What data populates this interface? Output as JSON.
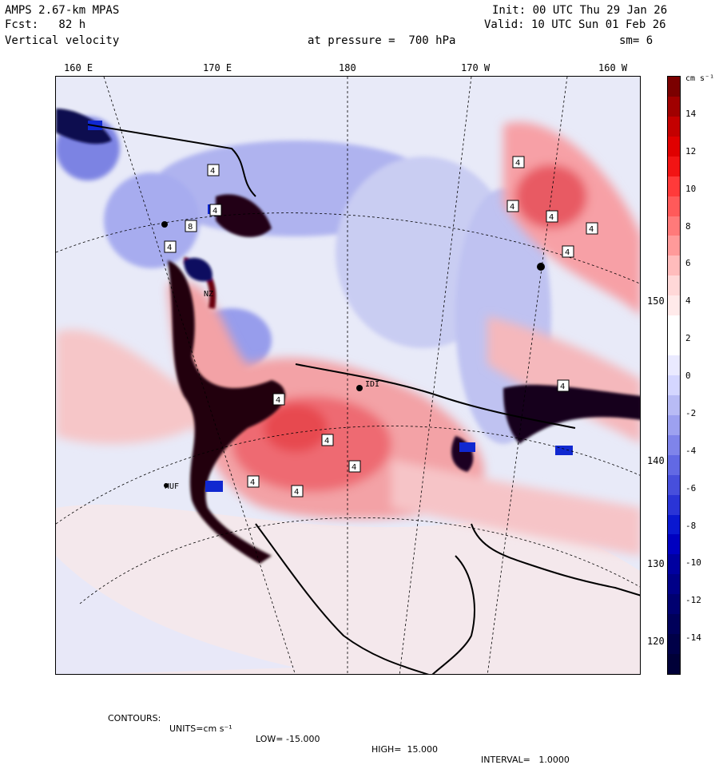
{
  "header": {
    "model": "AMPS 2.67-km MPAS",
    "forecast": "Fcst:   82 h",
    "field": "Vertical velocity",
    "level_text": "at pressure =  700 hPa",
    "init": "Init: 00 UTC Thu 29 Jan 26",
    "valid": "Valid: 10 UTC Sun 01 Feb 26",
    "smoothing": "sm= 6"
  },
  "map": {
    "lon_labels": [
      "160 E",
      "170 E",
      "180",
      "170 W",
      "160 W"
    ],
    "lat_labels": [
      "150 W",
      "140 W",
      "130 W",
      "120 W"
    ],
    "contour_boxes": [
      "4",
      "4",
      "8",
      "4",
      "4",
      "4",
      "4",
      "4",
      "4",
      "4",
      "4",
      "4",
      "4",
      "4",
      "4"
    ],
    "station_labels": [
      "NZ",
      "IDI",
      "HUF"
    ]
  },
  "colorbar": {
    "unit": "cm s⁻¹",
    "labels": [
      "14",
      "12",
      "10",
      "8",
      "6",
      "4",
      "2",
      "0",
      "-2",
      "-4",
      "-6",
      "-8",
      "-10",
      "-12",
      "-14"
    ],
    "colors": [
      "#7b0000",
      "#a00000",
      "#c40000",
      "#e00000",
      "#f21414",
      "#ff3a3a",
      "#ff5a5a",
      "#ff7a7a",
      "#ff9a9a",
      "#ffbcbc",
      "#ffd8d8",
      "#ffeaea",
      "#ffffff",
      "#ffffff",
      "#eaeaff",
      "#d4d6ff",
      "#b8bbf5",
      "#9da1f0",
      "#7f84ea",
      "#6269e4",
      "#474fdc",
      "#2a34d6",
      "#0a18d0",
      "#0000c0",
      "#0000a0",
      "#000088",
      "#000070",
      "#00005a",
      "#000048",
      "#000038"
    ]
  },
  "footer": {
    "contours": "CONTOURS:",
    "units": "UNITS=cm s⁻¹",
    "low": "LOW= -15.000",
    "high": "HIGH=  15.000",
    "interval": "INTERVAL=   1.0000"
  }
}
